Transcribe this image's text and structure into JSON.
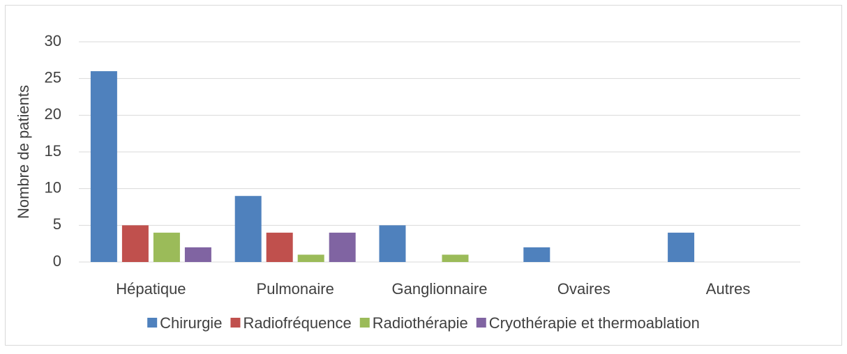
{
  "chart_data": {
    "type": "bar",
    "y_label": "Nombre de patients",
    "categories": [
      "Hépatique",
      "Pulmonaire",
      "Ganglionnaire",
      "Ovaires",
      "Autres"
    ],
    "series": [
      {
        "name": "Chirurgie",
        "color": "#4f81bd",
        "values": [
          26,
          9,
          5,
          2,
          4
        ]
      },
      {
        "name": "Radiofréquence",
        "color": "#c0504d",
        "values": [
          5,
          4,
          0,
          0,
          0
        ]
      },
      {
        "name": "Radiothérapie",
        "color": "#9bbb59",
        "values": [
          4,
          1,
          1,
          0,
          0
        ]
      },
      {
        "name": "Cryothérapie et thermoablation",
        "color": "#8064a2",
        "values": [
          2,
          4,
          0,
          0,
          0
        ]
      }
    ],
    "ylim": [
      0,
      30
    ],
    "yticks": [
      0,
      5,
      10,
      15,
      20,
      25,
      30
    ],
    "grid": true,
    "legend": "bottom"
  }
}
